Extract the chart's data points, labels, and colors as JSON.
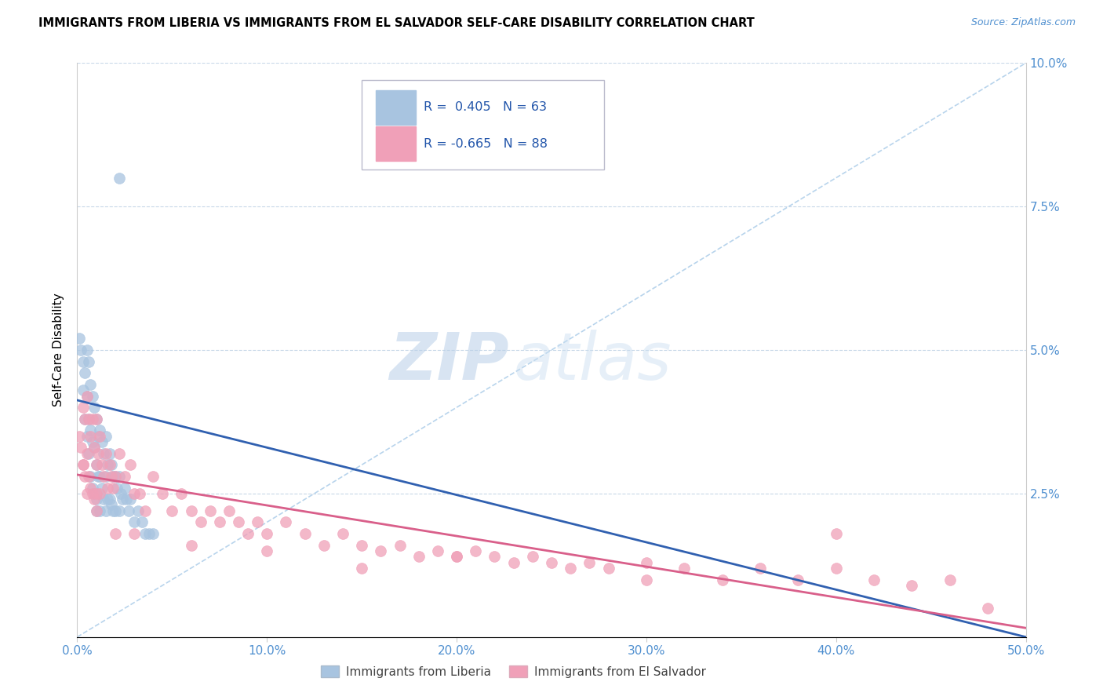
{
  "title": "IMMIGRANTS FROM LIBERIA VS IMMIGRANTS FROM EL SALVADOR SELF-CARE DISABILITY CORRELATION CHART",
  "source": "Source: ZipAtlas.com",
  "ylabel": "Self-Care Disability",
  "xlim": [
    0.0,
    0.5
  ],
  "ylim": [
    0.0,
    0.1
  ],
  "liberia_R": 0.405,
  "liberia_N": 63,
  "salvador_R": -0.665,
  "salvador_N": 88,
  "liberia_color": "#a8c4e0",
  "liberia_line_color": "#3060b0",
  "salvador_color": "#f0a0b8",
  "salvador_line_color": "#d95f8a",
  "diagonal_color": "#b8d4ec",
  "watermark_zip": "ZIP",
  "watermark_atlas": "atlas",
  "liberia_scatter_x": [
    0.001,
    0.002,
    0.003,
    0.003,
    0.004,
    0.004,
    0.005,
    0.005,
    0.005,
    0.006,
    0.006,
    0.006,
    0.007,
    0.007,
    0.007,
    0.008,
    0.008,
    0.008,
    0.009,
    0.009,
    0.009,
    0.01,
    0.01,
    0.01,
    0.01,
    0.011,
    0.011,
    0.012,
    0.012,
    0.012,
    0.013,
    0.013,
    0.014,
    0.014,
    0.015,
    0.015,
    0.015,
    0.016,
    0.016,
    0.017,
    0.017,
    0.018,
    0.018,
    0.019,
    0.019,
    0.02,
    0.02,
    0.021,
    0.022,
    0.022,
    0.023,
    0.024,
    0.025,
    0.026,
    0.027,
    0.028,
    0.03,
    0.032,
    0.034,
    0.036,
    0.038,
    0.04,
    0.022
  ],
  "liberia_scatter_y": [
    0.052,
    0.05,
    0.048,
    0.043,
    0.046,
    0.038,
    0.05,
    0.042,
    0.035,
    0.048,
    0.038,
    0.032,
    0.044,
    0.036,
    0.028,
    0.042,
    0.034,
    0.026,
    0.04,
    0.033,
    0.025,
    0.038,
    0.03,
    0.024,
    0.022,
    0.035,
    0.028,
    0.036,
    0.028,
    0.022,
    0.034,
    0.026,
    0.032,
    0.024,
    0.035,
    0.028,
    0.022,
    0.03,
    0.024,
    0.032,
    0.024,
    0.03,
    0.023,
    0.028,
    0.022,
    0.028,
    0.022,
    0.026,
    0.028,
    0.022,
    0.025,
    0.024,
    0.026,
    0.024,
    0.022,
    0.024,
    0.02,
    0.022,
    0.02,
    0.018,
    0.018,
    0.018,
    0.08
  ],
  "salvador_scatter_x": [
    0.001,
    0.002,
    0.003,
    0.003,
    0.004,
    0.004,
    0.005,
    0.005,
    0.005,
    0.006,
    0.006,
    0.007,
    0.007,
    0.008,
    0.008,
    0.009,
    0.009,
    0.01,
    0.01,
    0.01,
    0.011,
    0.012,
    0.012,
    0.013,
    0.014,
    0.015,
    0.016,
    0.017,
    0.018,
    0.019,
    0.02,
    0.022,
    0.025,
    0.028,
    0.03,
    0.033,
    0.036,
    0.04,
    0.045,
    0.05,
    0.055,
    0.06,
    0.065,
    0.07,
    0.075,
    0.08,
    0.085,
    0.09,
    0.095,
    0.1,
    0.11,
    0.12,
    0.13,
    0.14,
    0.15,
    0.16,
    0.17,
    0.18,
    0.19,
    0.2,
    0.21,
    0.22,
    0.23,
    0.24,
    0.25,
    0.26,
    0.27,
    0.28,
    0.3,
    0.32,
    0.34,
    0.36,
    0.38,
    0.4,
    0.42,
    0.44,
    0.46,
    0.003,
    0.01,
    0.02,
    0.03,
    0.06,
    0.1,
    0.15,
    0.2,
    0.3,
    0.4,
    0.48
  ],
  "salvador_scatter_y": [
    0.035,
    0.033,
    0.04,
    0.03,
    0.038,
    0.028,
    0.042,
    0.032,
    0.025,
    0.038,
    0.028,
    0.035,
    0.026,
    0.038,
    0.025,
    0.033,
    0.024,
    0.038,
    0.03,
    0.022,
    0.032,
    0.035,
    0.025,
    0.03,
    0.028,
    0.032,
    0.026,
    0.03,
    0.028,
    0.026,
    0.028,
    0.032,
    0.028,
    0.03,
    0.025,
    0.025,
    0.022,
    0.028,
    0.025,
    0.022,
    0.025,
    0.022,
    0.02,
    0.022,
    0.02,
    0.022,
    0.02,
    0.018,
    0.02,
    0.018,
    0.02,
    0.018,
    0.016,
    0.018,
    0.016,
    0.015,
    0.016,
    0.014,
    0.015,
    0.014,
    0.015,
    0.014,
    0.013,
    0.014,
    0.013,
    0.012,
    0.013,
    0.012,
    0.013,
    0.012,
    0.01,
    0.012,
    0.01,
    0.012,
    0.01,
    0.009,
    0.01,
    0.03,
    0.025,
    0.018,
    0.018,
    0.016,
    0.015,
    0.012,
    0.014,
    0.01,
    0.018,
    0.005
  ]
}
